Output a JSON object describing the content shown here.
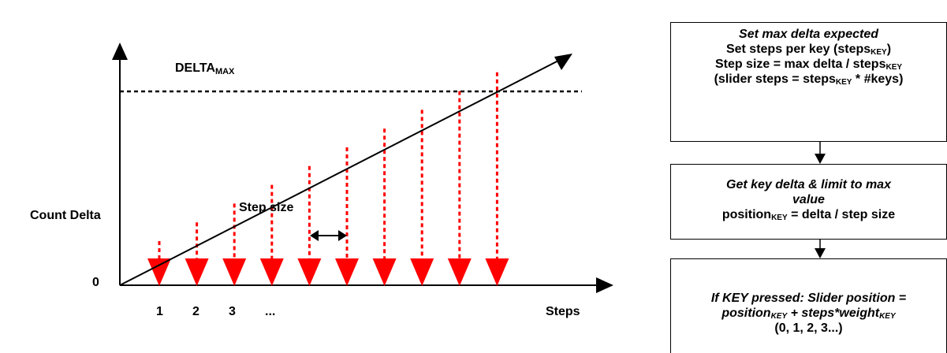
{
  "graph": {
    "y_label": "Count Delta",
    "x_label": "Steps",
    "origin_label": "0",
    "delta_max_main": "DELTA",
    "delta_max_sub": "MAX",
    "step_size_label": "Step size",
    "step_ticks": [
      "1",
      "2",
      "3",
      "..."
    ],
    "step_arrow_count": 10
  },
  "flow": {
    "box1": {
      "line1": "Set max delta expected",
      "line2_main": "Set steps per key (steps",
      "line2_sub": "KEY",
      "line2_end": ")",
      "line3_main": "Step size = max delta / steps",
      "line3_sub": "KEY",
      "line4_main": "(slider steps = steps",
      "line4_sub": "KEY",
      "line4_end": " * #keys)"
    },
    "box2": {
      "line1": "Get key delta & limit to max",
      "line2": "value",
      "line3_main": "position",
      "line3_sub": "KEY",
      "line3_end": " = delta / step size"
    },
    "box3": {
      "line1": "If KEY pressed: Slider position =",
      "line2_main": "position",
      "line2_sub": "KEY",
      "line2_mid": " + steps*weight",
      "line2_sub2": "KEY",
      "line3": "(0, 1, 2, 3...)"
    }
  },
  "colors": {
    "arrow_red": "#ff0000",
    "line_black": "#000000"
  }
}
